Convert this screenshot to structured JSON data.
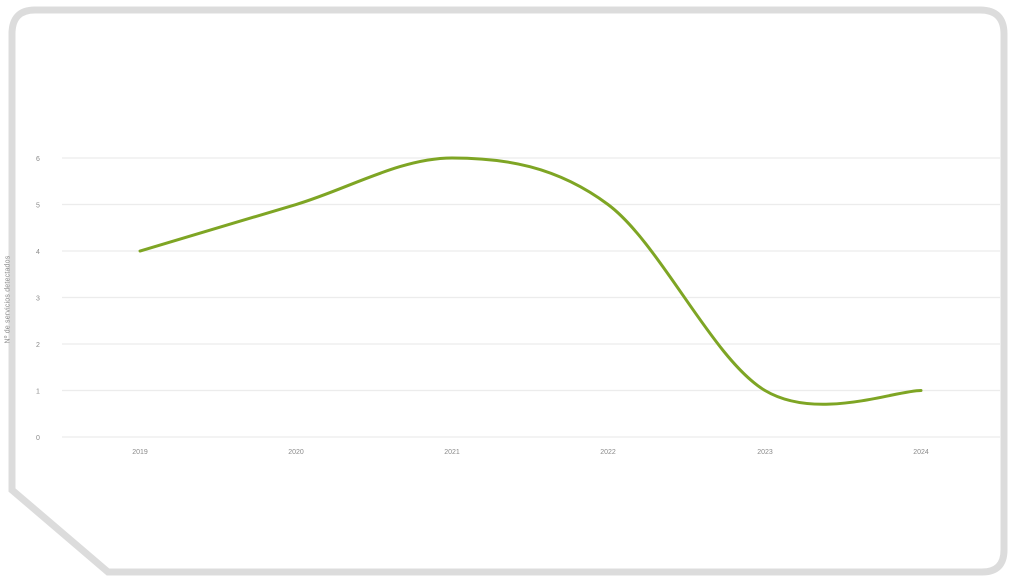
{
  "chart_data": {
    "type": "line",
    "title": "",
    "xlabel": "",
    "ylabel": "Nº de servicios detectados",
    "categories": [
      "2019",
      "2020",
      "2021",
      "2022",
      "2023",
      "2024"
    ],
    "series": [
      {
        "values": [
          4,
          5,
          6,
          5,
          1,
          1
        ]
      }
    ],
    "ylim": [
      0,
      6
    ],
    "yticks": [
      "0",
      "1",
      "2",
      "3",
      "4",
      "5",
      "6"
    ],
    "grid": true,
    "smooth": true,
    "legend": "none",
    "line_color": "#7ea524",
    "grid_color": "#ececec",
    "frame_color": "#dcdcdc"
  }
}
